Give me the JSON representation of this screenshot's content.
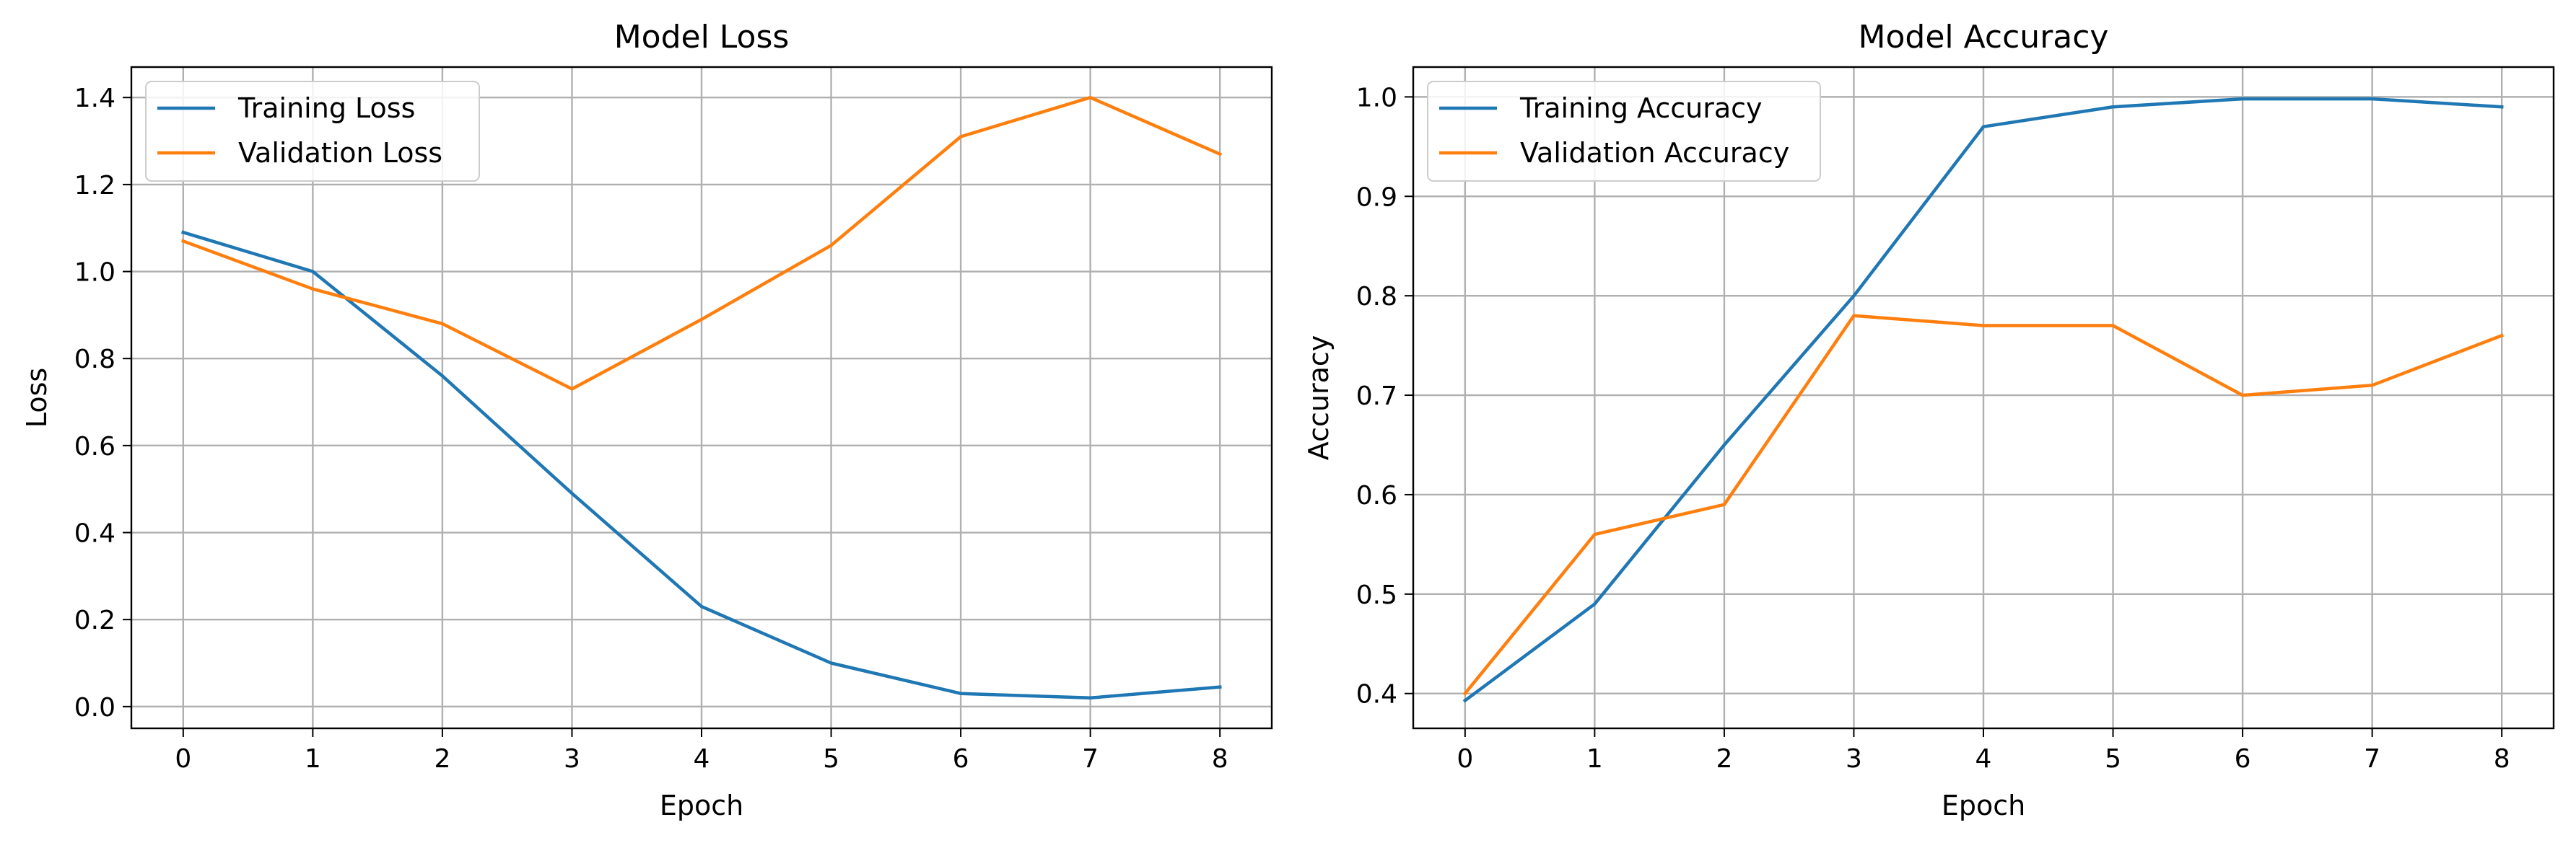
{
  "chart_data": [
    {
      "type": "line",
      "title": "Model Loss",
      "xlabel": "Epoch",
      "ylabel": "Loss",
      "x": [
        0,
        1,
        2,
        3,
        4,
        5,
        6,
        7,
        8
      ],
      "xlim": [
        -0.4,
        8.4
      ],
      "ylim": [
        -0.05,
        1.47
      ],
      "xticks": [
        0,
        1,
        2,
        3,
        4,
        5,
        6,
        7,
        8
      ],
      "yticks": [
        0.0,
        0.2,
        0.4,
        0.6,
        0.8,
        1.0,
        1.2,
        1.4
      ],
      "ytick_labels": [
        "0.0",
        "0.2",
        "0.4",
        "0.6",
        "0.8",
        "1.0",
        "1.2",
        "1.4"
      ],
      "grid": true,
      "legend_position": "upper left",
      "series": [
        {
          "name": "Training Loss",
          "color": "#1f77b4",
          "values": [
            1.09,
            1.0,
            0.76,
            0.49,
            0.23,
            0.1,
            0.03,
            0.02,
            0.045
          ]
        },
        {
          "name": "Validation Loss",
          "color": "#ff7f0e",
          "values": [
            1.07,
            0.96,
            0.88,
            0.73,
            0.89,
            1.06,
            1.31,
            1.4,
            1.27
          ]
        }
      ]
    },
    {
      "type": "line",
      "title": "Model Accuracy",
      "xlabel": "Epoch",
      "ylabel": "Accuracy",
      "x": [
        0,
        1,
        2,
        3,
        4,
        5,
        6,
        7,
        8
      ],
      "xlim": [
        -0.4,
        8.4
      ],
      "ylim": [
        0.365,
        1.03
      ],
      "xticks": [
        0,
        1,
        2,
        3,
        4,
        5,
        6,
        7,
        8
      ],
      "yticks": [
        0.4,
        0.5,
        0.6,
        0.7,
        0.8,
        0.9,
        1.0
      ],
      "ytick_labels": [
        "0.4",
        "0.5",
        "0.6",
        "0.7",
        "0.8",
        "0.9",
        "1.0"
      ],
      "grid": true,
      "legend_position": "upper left",
      "series": [
        {
          "name": "Training Accuracy",
          "color": "#1f77b4",
          "values": [
            0.393,
            0.49,
            0.65,
            0.8,
            0.97,
            0.99,
            0.998,
            0.998,
            0.99
          ]
        },
        {
          "name": "Validation Accuracy",
          "color": "#ff7f0e",
          "values": [
            0.4,
            0.56,
            0.59,
            0.78,
            0.77,
            0.77,
            0.7,
            0.71,
            0.76
          ]
        }
      ]
    }
  ]
}
